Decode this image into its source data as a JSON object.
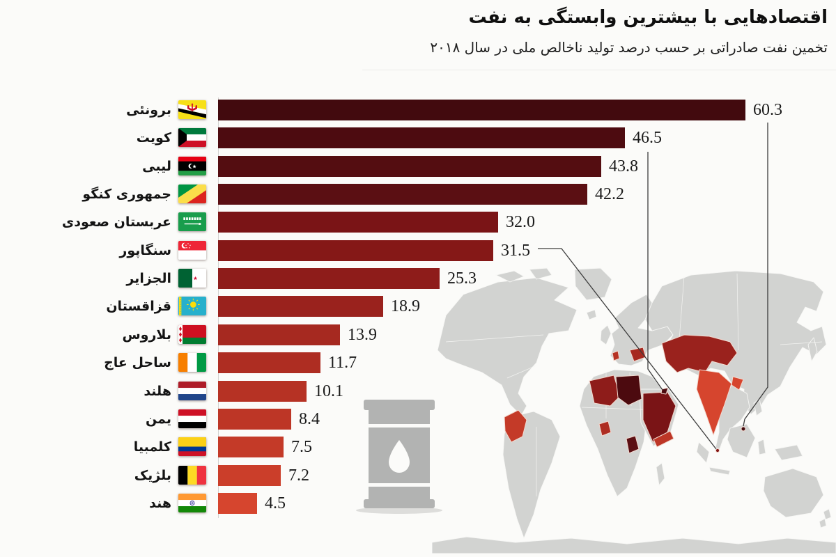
{
  "header": {
    "title": "اقتصادهایی با بیشترین وابستگی به نفت",
    "subtitle": "تخمین نفت صادراتی بر حسب درصد تولید ناخالص ملی در سال ۲۰۱۸"
  },
  "chart_data": {
    "type": "bar",
    "orientation": "horizontal",
    "title": "اقتصادهایی با بیشترین وابستگی به نفت",
    "subtitle": "تخمین نفت صادراتی بر حسب درصد تولید ناخالص ملی در سال ۲۰۱۸",
    "xlim": [
      0,
      63
    ],
    "grid": false,
    "legend": false,
    "categories": [
      "برونئی",
      "کویت",
      "لیبی",
      "جمهوری کنگو",
      "عربستان صعودی",
      "سنگاپور",
      "الجزایر",
      "قزاقستان",
      "بلاروس",
      "ساحل عاج",
      "هلند",
      "یمن",
      "کلمبیا",
      "بلژیک",
      "هند"
    ],
    "values": [
      60.3,
      46.5,
      43.8,
      42.2,
      32.0,
      31.5,
      25.3,
      18.9,
      13.9,
      11.7,
      10.1,
      8.4,
      7.5,
      7.2,
      4.5
    ],
    "value_labels": [
      "60.3",
      "46.5",
      "43.8",
      "42.2",
      "32.0",
      "31.5",
      "25.3",
      "18.9",
      "13.9",
      "11.7",
      "10.1",
      "8.4",
      "7.5",
      "7.2",
      "4.5"
    ],
    "flags": [
      "brunei",
      "kuwait",
      "libya",
      "congo-republic",
      "saudi-arabia",
      "singapore",
      "algeria",
      "kazakhstan",
      "belarus",
      "ivory-coast",
      "netherlands",
      "yemen",
      "colombia",
      "belgium",
      "india"
    ],
    "bar_colors": [
      "#420a0e",
      "#4d0b10",
      "#540d11",
      "#5b0f13",
      "#7a1416",
      "#851817",
      "#8e1c1a",
      "#9a221d",
      "#a62920",
      "#ae2d22",
      "#b63224",
      "#bd3626",
      "#c43a28",
      "#cb3e2a",
      "#d6452e"
    ],
    "callouts": [
      {
        "category": "کویت",
        "value": 46.5,
        "map_target": "kuwait"
      },
      {
        "category": "سنگاپور",
        "value": 31.5,
        "map_target": "singapore"
      },
      {
        "category": "برونئی",
        "value": 60.3,
        "map_target": "brunei"
      }
    ]
  },
  "decor": {
    "map_highlighted_countries": [
      "colombia",
      "ivory-coast",
      "algeria",
      "libya",
      "congo-republic",
      "saudi-arabia",
      "kuwait",
      "yemen",
      "belarus",
      "netherlands-belgium",
      "kazakhstan",
      "india",
      "singapore",
      "brunei"
    ],
    "icons": [
      "oil-barrel-icon"
    ],
    "palette": {
      "background": "#fbfbf9",
      "map_land": "#d2d3d1",
      "map_border": "#f7f7f5",
      "leader_line": "#3c3c3c",
      "barrel_gray": "#b2b3b2",
      "text": "#161616"
    }
  }
}
